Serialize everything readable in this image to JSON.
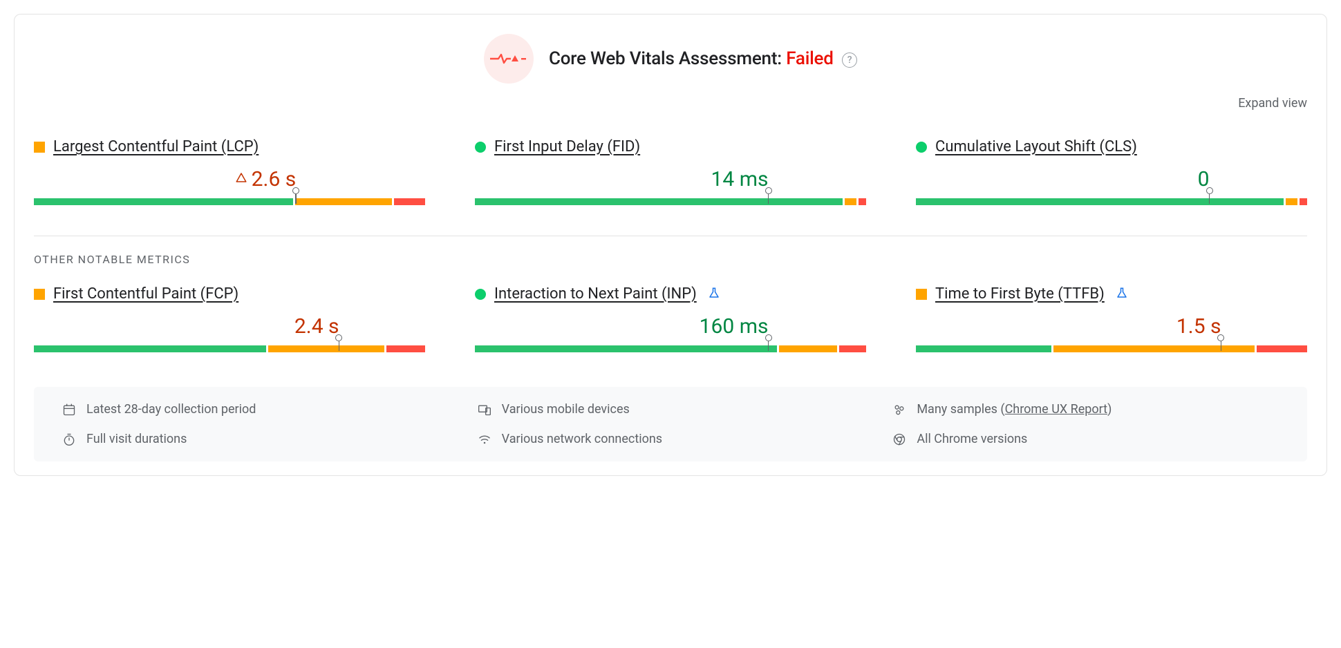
{
  "colors": {
    "fail_text": "#eb0f00",
    "pass_text": "#018642",
    "warn_text": "#c33300",
    "bar_good": "#2bc26d",
    "bar_ni": "#ffa400",
    "bar_poor": "#ff4e42",
    "link": "#1a73e8",
    "muted": "#5f6368"
  },
  "header": {
    "title_prefix": "Core Web Vitals Assessment:",
    "status_word": "Failed",
    "status_color": "#eb0f00",
    "expand_label": "Expand view"
  },
  "sections": {
    "other_label": "OTHER NOTABLE METRICS"
  },
  "metrics": {
    "lcp": {
      "name": "Largest Contentful Paint (LCP)",
      "status_shape": "square",
      "value_text": "2.6 s",
      "value_color": "#c33300",
      "show_warn_triangle": true,
      "experimental": false,
      "dist_good_pct": 67,
      "dist_ni_pct": 25,
      "dist_poor_pct": 8,
      "marker_pct": 67
    },
    "fid": {
      "name": "First Input Delay (FID)",
      "status_shape": "circle",
      "value_text": "14 ms",
      "value_color": "#018642",
      "show_warn_triangle": false,
      "experimental": false,
      "dist_good_pct": 95,
      "dist_ni_pct": 3,
      "dist_poor_pct": 2,
      "marker_pct": 75
    },
    "cls": {
      "name": "Cumulative Layout Shift (CLS)",
      "status_shape": "circle",
      "value_text": "0",
      "value_color": "#018642",
      "show_warn_triangle": false,
      "experimental": false,
      "dist_good_pct": 95,
      "dist_ni_pct": 3,
      "dist_poor_pct": 2,
      "marker_pct": 75
    },
    "fcp": {
      "name": "First Contentful Paint (FCP)",
      "status_shape": "square",
      "value_text": "2.4 s",
      "value_color": "#c33300",
      "show_warn_triangle": false,
      "experimental": false,
      "dist_good_pct": 60,
      "dist_ni_pct": 30,
      "dist_poor_pct": 10,
      "marker_pct": 78
    },
    "inp": {
      "name": "Interaction to Next Paint (INP)",
      "status_shape": "circle",
      "value_text": "160 ms",
      "value_color": "#018642",
      "show_warn_triangle": false,
      "experimental": true,
      "dist_good_pct": 78,
      "dist_ni_pct": 15,
      "dist_poor_pct": 7,
      "marker_pct": 75
    },
    "ttfb": {
      "name": "Time to First Byte (TTFB)",
      "status_shape": "square",
      "value_text": "1.5 s",
      "value_color": "#c33300",
      "show_warn_triangle": false,
      "experimental": true,
      "dist_good_pct": 35,
      "dist_ni_pct": 52,
      "dist_poor_pct": 13,
      "marker_pct": 78
    }
  },
  "footer": {
    "period": "Latest 28-day collection period",
    "devices": "Various mobile devices",
    "samples_pre": "Many samples (",
    "samples_link": "Chrome UX Report",
    "samples_post": ")",
    "durations": "Full visit durations",
    "network": "Various network connections",
    "versions": "All Chrome versions"
  }
}
